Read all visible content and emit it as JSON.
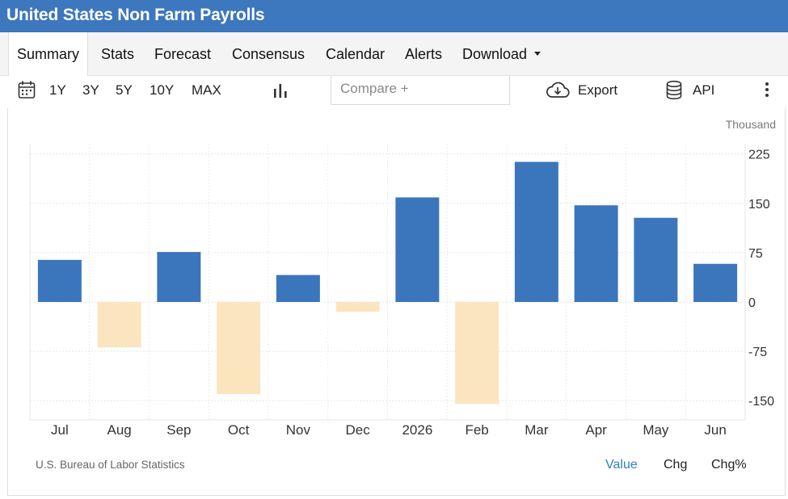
{
  "title": "United States Non Farm Payrolls",
  "tabs": [
    {
      "label": "Summary",
      "active": true
    },
    {
      "label": "Stats"
    },
    {
      "label": "Forecast"
    },
    {
      "label": "Consensus"
    },
    {
      "label": "Calendar"
    },
    {
      "label": "Alerts"
    },
    {
      "label": "Download"
    }
  ],
  "toolbar": {
    "ranges": [
      "1Y",
      "3Y",
      "5Y",
      "10Y",
      "MAX"
    ],
    "compare_placeholder": "Compare +",
    "export_label": "Export",
    "api_label": "API"
  },
  "icons": {
    "calendar": "calendar-icon",
    "chart_type": "bar-chart-icon",
    "export": "cloud-download-icon",
    "api": "database-icon",
    "more": "kebab-menu-icon"
  },
  "colors": {
    "header": "#3d77bd",
    "positive": "#3b76bd",
    "negative": "#fbe5bf",
    "active_mode": "#2f7fc1"
  },
  "chart_data": {
    "type": "bar",
    "unit": "Thousand",
    "categories": [
      "Jul",
      "Aug",
      "Sep",
      "Oct",
      "Nov",
      "Dec",
      "2026",
      "Feb",
      "Mar",
      "Apr",
      "May",
      "Jun"
    ],
    "values": [
      64,
      -69,
      76,
      -140,
      41,
      -15,
      159,
      -155,
      213,
      147,
      128,
      58
    ],
    "y_ticks": [
      225,
      150,
      75,
      0,
      -75,
      -150
    ],
    "ylim": [
      -181,
      240
    ],
    "grid": true,
    "y_axis_position": "right"
  },
  "source": "U.S. Bureau of Labor Statistics",
  "modes": [
    {
      "label": "Value",
      "active": true
    },
    {
      "label": "Chg"
    },
    {
      "label": "Chg%"
    }
  ]
}
